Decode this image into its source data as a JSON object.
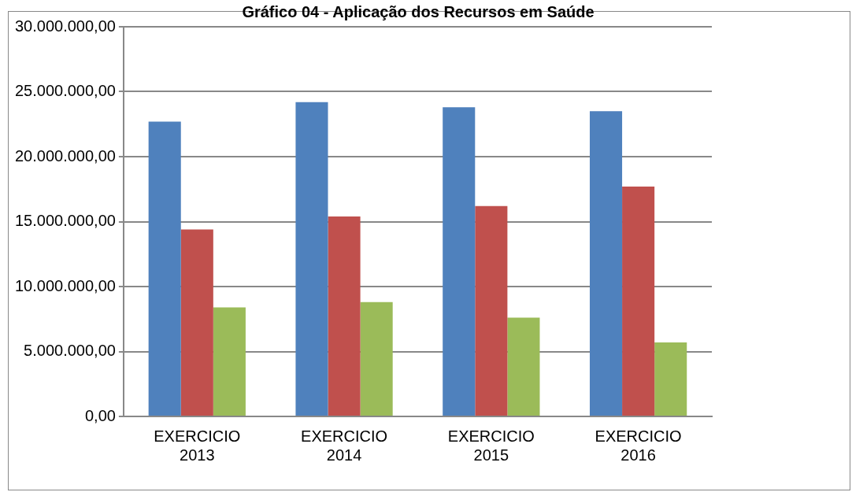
{
  "chart_data": {
    "type": "bar",
    "title": "Gráfico 04 - Aplicação dos Recursos em Saúde",
    "categories": [
      "EXERCICIO 2013",
      "EXERCICIO 2014",
      "EXERCICIO 2015",
      "EXERCICIO 2016"
    ],
    "series": [
      {
        "color": "#4f81bd",
        "values": [
          22700000,
          24200000,
          23800000,
          23500000
        ]
      },
      {
        "color": "#c0504d",
        "values": [
          14400000,
          15400000,
          16200000,
          17700000
        ]
      },
      {
        "color": "#9bbb59",
        "values": [
          8400000,
          8800000,
          7600000,
          5700000
        ]
      }
    ],
    "ylim": [
      0,
      30000000
    ],
    "yticks": [
      {
        "value": 0,
        "label": "0,00"
      },
      {
        "value": 5000000,
        "label": "5.000.000,00"
      },
      {
        "value": 10000000,
        "label": "10.000.000,00"
      },
      {
        "value": 15000000,
        "label": "15.000.000,00"
      },
      {
        "value": 20000000,
        "label": "20.000.000,00"
      },
      {
        "value": 25000000,
        "label": "25.000.000,00"
      },
      {
        "value": 30000000,
        "label": "30.000.000,00"
      }
    ],
    "grid": "y",
    "legend": false
  }
}
